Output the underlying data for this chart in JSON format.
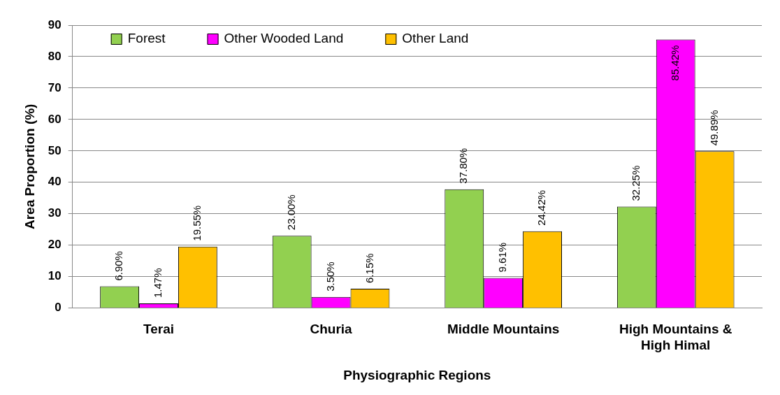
{
  "chart_data": {
    "type": "bar",
    "xlabel": "Physiographic Regions",
    "ylabel": "Area Proportion (%)",
    "categories": [
      "Terai",
      "Churia",
      "Middle Mountains",
      "High Mountains & High Himal"
    ],
    "series": [
      {
        "name": "Forest",
        "color": "#92d050",
        "values": [
          6.9,
          23.0,
          37.8,
          32.25
        ],
        "value_labels": [
          "6.90%",
          "23.00%",
          "37.80%",
          "32.25%"
        ]
      },
      {
        "name": "Other Wooded Land",
        "color": "#ff00ff",
        "values": [
          1.47,
          3.5,
          9.61,
          85.42
        ],
        "value_labels": [
          "1.47%",
          "3.50%",
          "9.61%",
          "85.42%"
        ]
      },
      {
        "name": "Other Land",
        "color": "#ffc000",
        "values": [
          19.55,
          6.15,
          24.42,
          49.89
        ],
        "value_labels": [
          "19.55%",
          "6.15%",
          "24.42%",
          "49.89%"
        ]
      }
    ],
    "ylim": [
      0,
      90
    ],
    "yticks": [
      0,
      10,
      20,
      30,
      40,
      50,
      60,
      70,
      80,
      90
    ],
    "grid": "y",
    "legend": "top left"
  }
}
